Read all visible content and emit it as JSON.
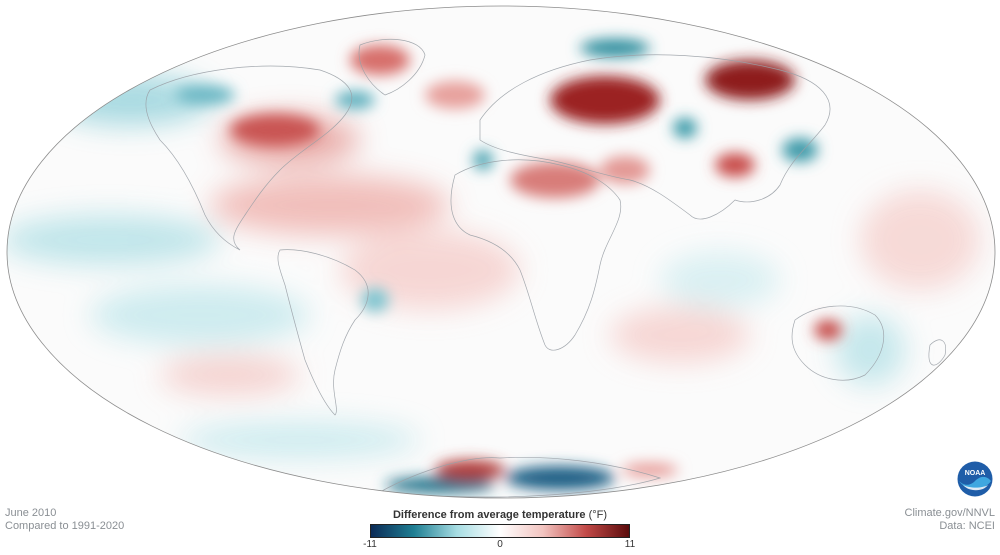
{
  "map": {
    "projection": "Mollweide (Pacific-centered view, Greenwich near center)",
    "variable": "Difference from average temperature",
    "anomaly_regions": [
      {
        "region": "Western Russia",
        "anomaly": "strong warm"
      },
      {
        "region": "Eastern Siberia",
        "anomaly": "strong warm"
      },
      {
        "region": "Eastern Canada / Quebec",
        "anomaly": "warm"
      },
      {
        "region": "Greenland / North Atlantic",
        "anomaly": "warm"
      },
      {
        "region": "Sahara / North Africa",
        "anomaly": "warm"
      },
      {
        "region": "Arabian Peninsula",
        "anomaly": "warm"
      },
      {
        "region": "Tropical North Atlantic",
        "anomaly": "warm"
      },
      {
        "region": "Southeast Australia",
        "anomaly": "warm"
      },
      {
        "region": "Northern Scandinavia",
        "anomaly": "cool"
      },
      {
        "region": "Western Europe / Iberia",
        "anomaly": "cool"
      },
      {
        "region": "Central Asia",
        "anomaly": "cool"
      },
      {
        "region": "Northeast Asia / Japan",
        "anomaly": "cool"
      },
      {
        "region": "Equatorial East Pacific",
        "anomaly": "cool"
      },
      {
        "region": "Antarctica (sectors)",
        "anomaly": "strong cool and warm"
      }
    ]
  },
  "meta": {
    "date": "June 2010",
    "baseline": "Compared to 1991-2020",
    "source": "Climate.gov/NNVL",
    "data": "Data: NCEI"
  },
  "legend": {
    "title": "Difference from average temperature",
    "unit": "(°F)",
    "min": "-11",
    "mid": "0",
    "max": "11",
    "colors": [
      "#0b2a56",
      "#1f7f93",
      "#a7dde3",
      "#ffffff",
      "#f2c4c0",
      "#c24a48",
      "#5a0b0b"
    ]
  },
  "logo": {
    "text": "NOAA",
    "icon": "noaa-logo"
  }
}
